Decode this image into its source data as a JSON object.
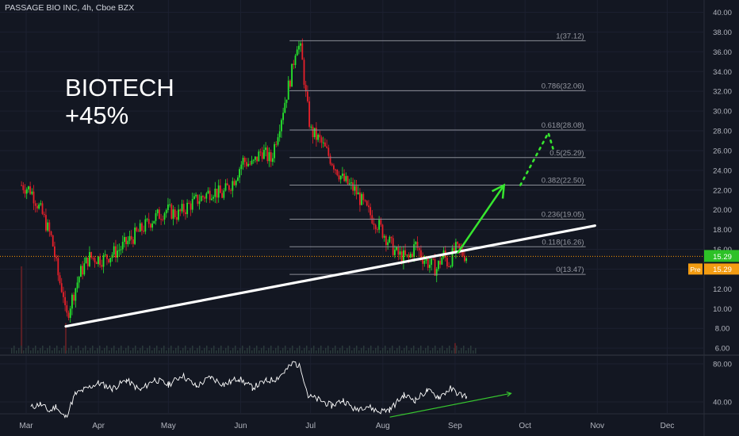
{
  "header": {
    "title": "PASSAGE BIO INC, 4h, Cboe BZX"
  },
  "annotation": {
    "line1": "BIOTECH",
    "line2": "+45%"
  },
  "colors": {
    "background": "#131722",
    "up": "#26e62d",
    "down": "#e8202a",
    "fib": "#8a8d96",
    "trendline": "#ffffff",
    "arrow": "#37e62f",
    "rsi": "#ffffff",
    "rsi_trend": "#37c62f",
    "price_tag": "#2dc127",
    "pre_tag": "#f39c12",
    "last_price_line": "#ff9800"
  },
  "chart_data": [
    {
      "type": "candlestick",
      "title": "PASSAGE BIO INC, 4h, Cboe BZX",
      "x_tick_labels": [
        "Mar",
        "Apr",
        "May",
        "Jun",
        "Jul",
        "Aug",
        "Sep",
        "Oct",
        "Nov",
        "Dec"
      ],
      "y_tick_labels": [
        "40.00",
        "38.00",
        "36.00",
        "34.00",
        "32.00",
        "30.00",
        "28.00",
        "26.00",
        "24.00",
        "22.00",
        "20.00",
        "18.00",
        "16.00",
        "14.00",
        "12.00",
        "10.00",
        "8.00",
        "6.00"
      ],
      "ylim": [
        5,
        41
      ],
      "fibonacci": [
        {
          "level": "1",
          "price": 37.12,
          "label": "1(37.12)"
        },
        {
          "level": "0.786",
          "price": 32.06,
          "label": "0.786(32.06)"
        },
        {
          "level": "0.618",
          "price": 28.08,
          "label": "0.618(28.08)"
        },
        {
          "level": "0.5",
          "price": 25.29,
          "label": "0.5(25.29)"
        },
        {
          "level": "0.382",
          "price": 22.5,
          "label": "0.382(22.50)"
        },
        {
          "level": "0.236",
          "price": 19.05,
          "label": "0.236(19.05)"
        },
        {
          "level": "0.118",
          "price": 16.26,
          "label": "0.118(16.26)"
        },
        {
          "level": "0",
          "price": 13.47,
          "label": "0(13.47)"
        }
      ],
      "last_price": {
        "value": 15.29,
        "label": "15.29"
      },
      "pre_market": {
        "prefix": "Pre",
        "label": "15.29"
      },
      "trendline": {
        "from": {
          "date": "2020-03-18",
          "price": 8.2
        },
        "to": {
          "date": "2020-10-31",
          "price": 18.4
        }
      },
      "projection_arrow": {
        "from": {
          "date": "2020-09-02",
          "price": 15.6
        },
        "to": {
          "date": "2020-09-22",
          "price": 22.5
        }
      },
      "projection_dotted": [
        {
          "date": "2020-09-29",
          "price": 22.5
        },
        {
          "date": "2020-10-11",
          "price": 27.8
        },
        {
          "date": "2020-10-13",
          "price": 26.2
        }
      ],
      "price_path": [
        {
          "date": "2020-02-28",
          "price": 22.5
        },
        {
          "date": "2020-03-03",
          "price": 22.0
        },
        {
          "date": "2020-03-08",
          "price": 19.5
        },
        {
          "date": "2020-03-12",
          "price": 17.0
        },
        {
          "date": "2020-03-15",
          "price": 13.0
        },
        {
          "date": "2020-03-17",
          "price": 11.5
        },
        {
          "date": "2020-03-18",
          "price": 8.8
        },
        {
          "date": "2020-03-20",
          "price": 10.5
        },
        {
          "date": "2020-03-24",
          "price": 13.5
        },
        {
          "date": "2020-03-28",
          "price": 15.2
        },
        {
          "date": "2020-04-03",
          "price": 15.0
        },
        {
          "date": "2020-04-10",
          "price": 16.0
        },
        {
          "date": "2020-04-17",
          "price": 17.5
        },
        {
          "date": "2020-04-24",
          "price": 19.0
        },
        {
          "date": "2020-04-30",
          "price": 20.0
        },
        {
          "date": "2020-05-05",
          "price": 19.5
        },
        {
          "date": "2020-05-10",
          "price": 20.5
        },
        {
          "date": "2020-05-17",
          "price": 21.5
        },
        {
          "date": "2020-05-20",
          "price": 22.0
        },
        {
          "date": "2020-05-24",
          "price": 21.5
        },
        {
          "date": "2020-05-29",
          "price": 23.0
        },
        {
          "date": "2020-06-02",
          "price": 25.0
        },
        {
          "date": "2020-06-06",
          "price": 24.5
        },
        {
          "date": "2020-06-10",
          "price": 26.0
        },
        {
          "date": "2020-06-14",
          "price": 25.0
        },
        {
          "date": "2020-06-17",
          "price": 28.0
        },
        {
          "date": "2020-06-20",
          "price": 31.0
        },
        {
          "date": "2020-06-23",
          "price": 34.0
        },
        {
          "date": "2020-06-25",
          "price": 37.0
        },
        {
          "date": "2020-06-27",
          "price": 36.0
        },
        {
          "date": "2020-06-29",
          "price": 31.5
        },
        {
          "date": "2020-07-01",
          "price": 28.0
        },
        {
          "date": "2020-07-05",
          "price": 27.0
        },
        {
          "date": "2020-07-10",
          "price": 25.0
        },
        {
          "date": "2020-07-15",
          "price": 23.0
        },
        {
          "date": "2020-07-20",
          "price": 22.0
        },
        {
          "date": "2020-07-25",
          "price": 20.0
        },
        {
          "date": "2020-07-30",
          "price": 18.5
        },
        {
          "date": "2020-08-03",
          "price": 17.0
        },
        {
          "date": "2020-08-07",
          "price": 15.5
        },
        {
          "date": "2020-08-12",
          "price": 15.0
        },
        {
          "date": "2020-08-15",
          "price": 16.5
        },
        {
          "date": "2020-08-18",
          "price": 15.2
        },
        {
          "date": "2020-08-21",
          "price": 14.5
        },
        {
          "date": "2020-08-24",
          "price": 14.0
        },
        {
          "date": "2020-08-27",
          "price": 15.5
        },
        {
          "date": "2020-08-29",
          "price": 14.5
        },
        {
          "date": "2020-09-01",
          "price": 16.0
        },
        {
          "date": "2020-09-03",
          "price": 15.8
        },
        {
          "date": "2020-09-06",
          "price": 15.3
        }
      ],
      "volume_spikes": [
        {
          "date": "2020-02-28",
          "relative": 1.0
        },
        {
          "date": "2020-03-18",
          "relative": 0.35
        },
        {
          "date": "2020-09-01",
          "relative": 0.12
        }
      ]
    },
    {
      "type": "line",
      "title": "",
      "y_tick_labels": [
        "80.00",
        "40.00"
      ],
      "ylim": [
        20,
        90
      ],
      "series": [
        {
          "values": [
            {
              "date": "2020-03-03",
              "y": 34
            },
            {
              "date": "2020-03-07",
              "y": 38
            },
            {
              "date": "2020-03-11",
              "y": 30
            },
            {
              "date": "2020-03-14",
              "y": 36
            },
            {
              "date": "2020-03-16",
              "y": 27
            },
            {
              "date": "2020-03-18",
              "y": 24
            },
            {
              "date": "2020-03-22",
              "y": 48
            },
            {
              "date": "2020-03-26",
              "y": 53
            },
            {
              "date": "2020-04-01",
              "y": 60
            },
            {
              "date": "2020-04-07",
              "y": 54
            },
            {
              "date": "2020-04-13",
              "y": 63
            },
            {
              "date": "2020-04-19",
              "y": 52
            },
            {
              "date": "2020-04-25",
              "y": 64
            },
            {
              "date": "2020-05-01",
              "y": 58
            },
            {
              "date": "2020-05-07",
              "y": 68
            },
            {
              "date": "2020-05-13",
              "y": 56
            },
            {
              "date": "2020-05-19",
              "y": 66
            },
            {
              "date": "2020-05-25",
              "y": 58
            },
            {
              "date": "2020-05-31",
              "y": 65
            },
            {
              "date": "2020-06-06",
              "y": 55
            },
            {
              "date": "2020-06-12",
              "y": 62
            },
            {
              "date": "2020-06-16",
              "y": 64
            },
            {
              "date": "2020-06-20",
              "y": 72
            },
            {
              "date": "2020-06-24",
              "y": 82
            },
            {
              "date": "2020-06-27",
              "y": 75
            },
            {
              "date": "2020-06-30",
              "y": 46
            },
            {
              "date": "2020-07-05",
              "y": 42
            },
            {
              "date": "2020-07-10",
              "y": 36
            },
            {
              "date": "2020-07-15",
              "y": 42
            },
            {
              "date": "2020-07-20",
              "y": 32
            },
            {
              "date": "2020-07-25",
              "y": 36
            },
            {
              "date": "2020-07-30",
              "y": 30
            },
            {
              "date": "2020-08-04",
              "y": 32
            },
            {
              "date": "2020-08-10",
              "y": 47
            },
            {
              "date": "2020-08-15",
              "y": 42
            },
            {
              "date": "2020-08-20",
              "y": 52
            },
            {
              "date": "2020-08-25",
              "y": 45
            },
            {
              "date": "2020-08-30",
              "y": 54
            },
            {
              "date": "2020-09-03",
              "y": 48
            },
            {
              "date": "2020-09-06",
              "y": 46
            }
          ]
        }
      ],
      "trendline": {
        "from": {
          "date": "2020-08-04",
          "y": 24
        },
        "to": {
          "date": "2020-09-25",
          "y": 49
        }
      }
    }
  ]
}
